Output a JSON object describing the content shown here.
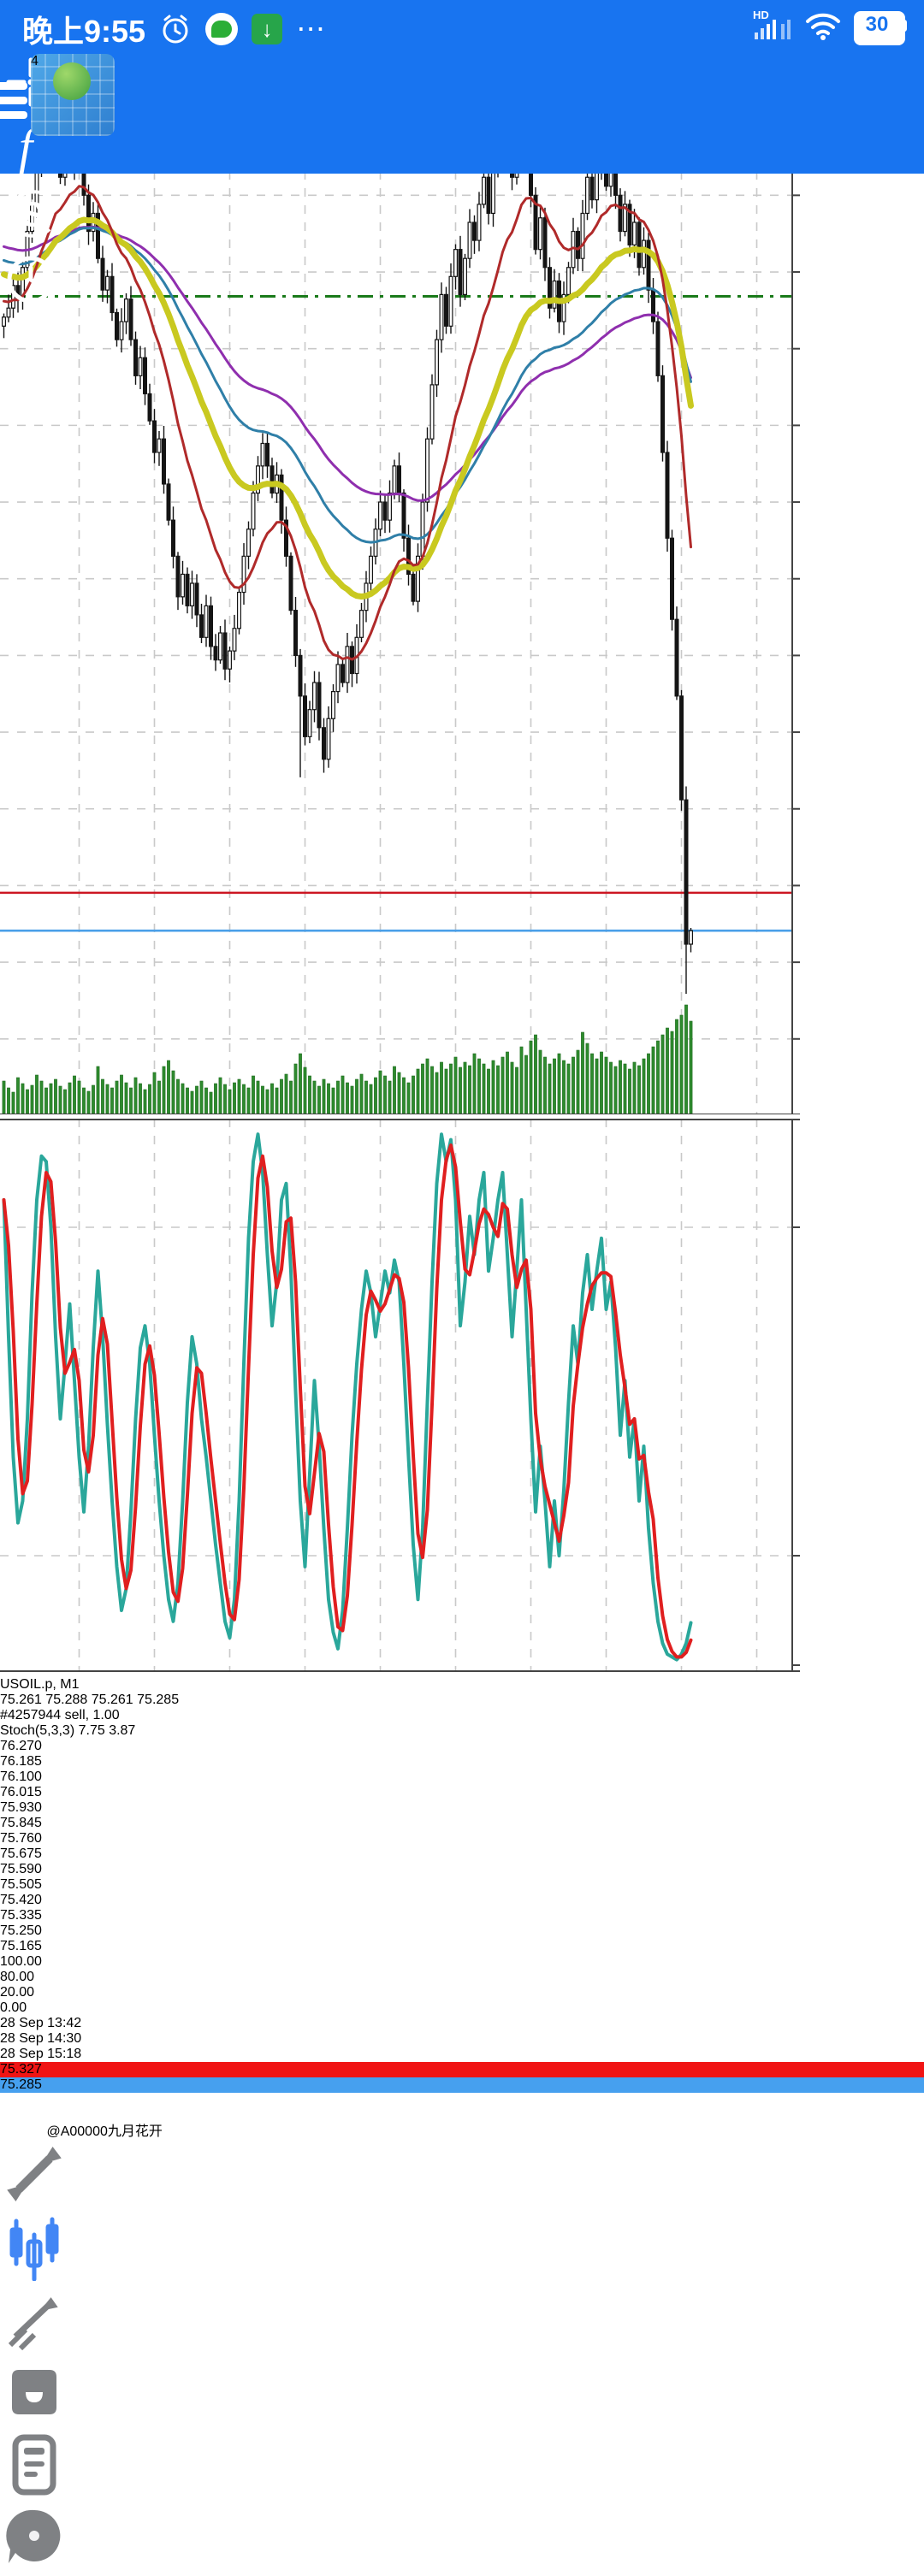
{
  "status_bar": {
    "time": "晚上9:55",
    "network_label": "HD",
    "battery": "30",
    "more_dots": "⋯"
  },
  "app_bar": {
    "items": [
      "menu",
      "mt4-logo",
      "crosshair",
      "indicators",
      "trade-exchange",
      "history-clock",
      "new-chart"
    ]
  },
  "chart": {
    "symbol": "USOIL.p, M1",
    "ohlc": "75.261 75.288 75.261 75.285",
    "position_label": "#4257944 sell, 1.00",
    "ask_badge": {
      "value": "75.327",
      "color": "#f01414"
    },
    "bid_badge": {
      "value": "75.285",
      "color": "#46a0ef"
    },
    "time_axis": [
      {
        "text": "28 Sep 13:42",
        "bar": 0
      },
      {
        "text": "28 Sep 14:30",
        "bar": 48
      },
      {
        "text": "28 Sep 15:18",
        "bar": 96
      }
    ]
  },
  "stoch_panel": {
    "title": "Stoch(5,3,3) 7.75 3.87",
    "levels": [
      "100.00",
      "80.00",
      "20.00",
      "0.00"
    ]
  },
  "watermark": {
    "text": "@A00000九月花开"
  },
  "bottom_nav": {
    "items": [
      "quotes",
      "charts",
      "trade",
      "history",
      "journal",
      "messages"
    ],
    "active": "charts",
    "active_color": "#4286f5",
    "idle_color": "#7f8184"
  },
  "chart_data": {
    "type": "candlestick",
    "title": "USOIL.p, M1",
    "symbol": "USOIL.p",
    "timeframe": "M1",
    "bars": 147,
    "minutes_per_bar": 1,
    "bars_per_gridline": 16,
    "axis": {
      "top_price": 76.27,
      "step": 0.085,
      "grid_count": 14,
      "labels": [
        "76.270",
        "76.185",
        "76.100",
        "76.015",
        "75.930",
        "75.845",
        "75.760",
        "75.675",
        "75.590",
        "75.505",
        "75.420",
        "75.335",
        "75.250",
        "75.165"
      ],
      "hidden_behind_badge": "75.335"
    },
    "current_bar": {
      "open": 75.261,
      "high": 75.288,
      "low": 75.261,
      "close": 75.285
    },
    "lines": {
      "position_open_sell": 75.988,
      "ask": 75.327,
      "bid": 75.285,
      "position_color": "#1a7a1a",
      "ask_color": "#cc1622",
      "bid_color": "#4a9fe8"
    },
    "closes": [
      75.965,
      75.975,
      76.0,
      75.985,
      76.02,
      76.06,
      76.09,
      76.13,
      76.16,
      76.14,
      76.175,
      76.19,
      76.12,
      76.15,
      76.165,
      76.13,
      76.155,
      76.1,
      76.06,
      76.08,
      76.03,
      75.995,
      76.01,
      75.97,
      75.94,
      75.96,
      75.985,
      75.94,
      75.9,
      75.92,
      75.88,
      75.85,
      75.815,
      75.83,
      75.78,
      75.74,
      75.7,
      75.655,
      75.68,
      75.645,
      75.67,
      75.635,
      75.61,
      75.645,
      75.6,
      75.585,
      75.615,
      75.575,
      75.595,
      75.62,
      75.66,
      75.7,
      75.73,
      75.77,
      75.8,
      75.825,
      75.8,
      75.77,
      75.79,
      75.74,
      75.7,
      75.64,
      75.59,
      75.545,
      75.5,
      75.53,
      75.56,
      75.51,
      75.475,
      75.52,
      75.55,
      75.58,
      75.56,
      75.6,
      75.57,
      75.61,
      75.64,
      75.67,
      75.7,
      75.73,
      75.76,
      75.74,
      75.77,
      75.8,
      75.77,
      75.72,
      75.68,
      75.65,
      75.7,
      75.76,
      75.83,
      75.89,
      75.94,
      75.99,
      75.955,
      76.01,
      76.04,
      75.99,
      76.03,
      76.07,
      76.05,
      76.09,
      76.12,
      76.08,
      76.13,
      76.16,
      76.19,
      76.155,
      76.12,
      76.18,
      76.21,
      76.15,
      76.1,
      76.04,
      76.075,
      76.02,
      75.975,
      76.005,
      75.96,
      75.99,
      76.02,
      76.06,
      76.03,
      76.08,
      76.12,
      76.095,
      76.13,
      76.155,
      76.11,
      76.14,
      76.1,
      76.06,
      76.09,
      76.045,
      76.07,
      76.02,
      76.05,
      75.995,
      75.96,
      75.9,
      75.815,
      75.72,
      75.63,
      75.545,
      75.43,
      75.27,
      75.285
    ],
    "wick_overrides": [
      {
        "i": 11,
        "high": 76.205
      },
      {
        "i": 106,
        "high": 76.2
      },
      {
        "i": 110,
        "high": 76.235
      },
      {
        "i": 63,
        "low": 75.455
      },
      {
        "i": 68,
        "low": 75.46
      },
      {
        "i": 145,
        "low": 75.215
      },
      {
        "i": 146,
        "high": 75.288,
        "low": 75.261
      }
    ],
    "volumes": [
      38,
      30,
      25,
      42,
      35,
      28,
      33,
      45,
      38,
      30,
      35,
      40,
      32,
      28,
      36,
      44,
      38,
      30,
      26,
      33,
      55,
      40,
      34,
      30,
      38,
      45,
      36,
      30,
      42,
      35,
      28,
      34,
      48,
      38,
      55,
      62,
      50,
      40,
      35,
      30,
      26,
      32,
      38,
      30,
      25,
      35,
      42,
      34,
      28,
      36,
      40,
      34,
      30,
      44,
      38,
      32,
      28,
      35,
      30,
      40,
      46,
      38,
      58,
      70,
      54,
      44,
      38,
      32,
      40,
      35,
      30,
      38,
      44,
      36,
      32,
      40,
      46,
      38,
      34,
      42,
      50,
      44,
      38,
      55,
      48,
      42,
      36,
      44,
      52,
      58,
      64,
      55,
      48,
      60,
      52,
      58,
      66,
      54,
      60,
      56,
      70,
      64,
      58,
      52,
      62,
      56,
      66,
      72,
      60,
      54,
      78,
      68,
      85,
      92,
      74,
      66,
      58,
      64,
      70,
      62,
      58,
      66,
      74,
      95,
      82,
      70,
      64,
      72,
      66,
      60,
      55,
      62,
      58,
      52,
      60,
      56,
      64,
      70,
      78,
      85,
      92,
      100,
      96,
      110,
      115,
      127,
      108
    ],
    "volume_color": "#2e8b2e",
    "moving_averages": [
      {
        "name": "ma-slowest",
        "color": "#8f2fae",
        "period": 85,
        "seed": 76.045,
        "width": 3
      },
      {
        "name": "ma-slow",
        "color": "#2f7fa8",
        "period": 60,
        "seed": 76.03,
        "width": 3
      },
      {
        "name": "ma-medium",
        "color": "#c9c920",
        "period": 38,
        "seed": 76.015,
        "width": 7
      },
      {
        "name": "ma-fast",
        "color": "#b02a2a",
        "period": 16,
        "seed": 75.985,
        "width": 3
      }
    ],
    "stochastic": {
      "settings": "Stoch(5,3,3)",
      "current_k": 7.75,
      "current_d": 3.87,
      "range": [
        0,
        100
      ],
      "levels": [
        100,
        80,
        20,
        0
      ],
      "k_color": "#2aa79b",
      "d_color": "#e01f1f",
      "k": [
        85,
        60,
        38,
        26,
        30,
        45,
        68,
        85,
        93,
        92,
        80,
        60,
        45,
        55,
        66,
        52,
        38,
        28,
        40,
        58,
        72,
        60,
        44,
        30,
        18,
        10,
        14,
        28,
        45,
        58,
        62,
        55,
        42,
        30,
        20,
        12,
        8,
        15,
        30,
        48,
        60,
        55,
        45,
        38,
        30,
        22,
        15,
        8,
        5,
        12,
        30,
        55,
        78,
        92,
        97,
        90,
        75,
        62,
        70,
        85,
        88,
        72,
        50,
        30,
        18,
        35,
        52,
        40,
        25,
        12,
        6,
        3,
        10,
        25,
        42,
        55,
        65,
        72,
        68,
        60,
        66,
        72,
        68,
        74,
        70,
        55,
        38,
        22,
        12,
        25,
        48,
        70,
        88,
        97,
        92,
        96,
        85,
        62,
        70,
        82,
        75,
        85,
        90,
        72,
        78,
        85,
        90,
        75,
        60,
        72,
        85,
        65,
        45,
        28,
        40,
        30,
        18,
        30,
        20,
        32,
        48,
        62,
        55,
        68,
        75,
        65,
        72,
        78,
        65,
        70,
        58,
        42,
        52,
        38,
        45,
        30,
        40,
        25,
        15,
        8,
        4,
        2,
        1.5,
        1,
        2,
        4,
        7.75
      ],
      "d_rule": "sma3_of_k"
    }
  }
}
